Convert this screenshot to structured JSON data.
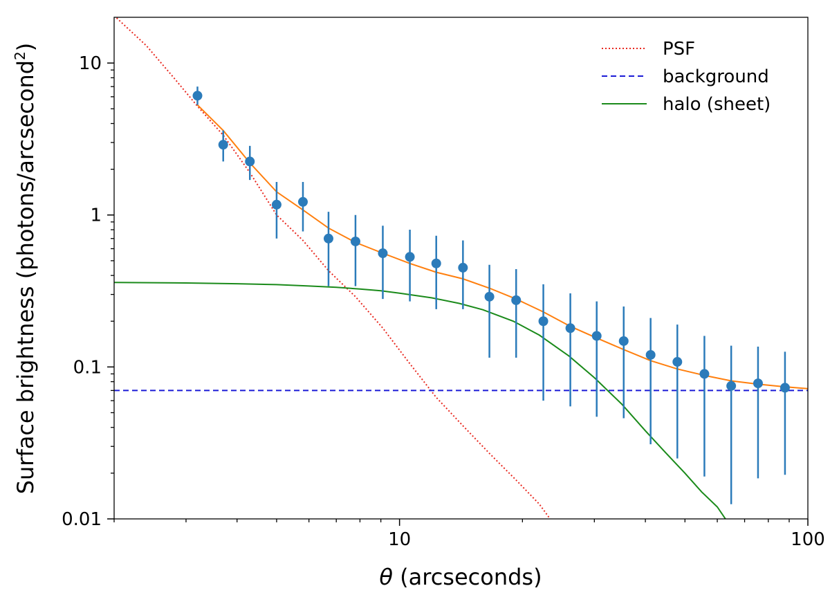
{
  "chart_data": {
    "type": "scatter",
    "xlabel_symbol": "θ",
    "xlabel_text": " (arcseconds)",
    "ylabel_text": "Surface brightness (photons/arcsecond",
    "ylabel_sup": "2",
    "ylabel_close": ")",
    "xscale": "log",
    "yscale": "log",
    "xlim": [
      2.0,
      100
    ],
    "ylim": [
      0.01,
      20
    ],
    "x_ticks": [
      {
        "value": 10,
        "label": "10"
      },
      {
        "value": 100,
        "label": "100"
      }
    ],
    "x_minor_ticks": [
      2,
      3,
      4,
      5,
      6,
      7,
      8,
      9,
      20,
      30,
      40,
      50,
      60,
      70,
      80,
      90
    ],
    "y_ticks": [
      {
        "value": 10,
        "label": "10"
      },
      {
        "value": 1,
        "label": "1"
      },
      {
        "value": 0.1,
        "label": "0.1"
      },
      {
        "value": 0.01,
        "label": "0.01"
      }
    ],
    "y_minor_ticks": [
      0.02,
      0.03,
      0.04,
      0.05,
      0.06,
      0.07,
      0.08,
      0.09,
      0.2,
      0.3,
      0.4,
      0.5,
      0.6,
      0.7,
      0.8,
      0.9,
      2,
      3,
      4,
      5,
      6,
      7,
      8,
      9
    ],
    "grid": false,
    "legend_position": "top-right",
    "legend": [
      {
        "label": "PSF",
        "color": "#e8281f",
        "style": "dotted"
      },
      {
        "label": "background",
        "color": "#1a1ad6",
        "style": "dashed"
      },
      {
        "label": "halo (sheet)",
        "color": "#1a8a1a",
        "style": "solid"
      }
    ],
    "data_points": {
      "color": "#2b7bba",
      "points": [
        {
          "x": 3.2,
          "y": 6.1,
          "ylo": 5.3,
          "yhi": 7.0
        },
        {
          "x": 3.7,
          "y": 2.9,
          "ylo": 2.25,
          "yhi": 3.6
        },
        {
          "x": 4.3,
          "y": 2.25,
          "ylo": 1.7,
          "yhi": 2.85
        },
        {
          "x": 5.0,
          "y": 1.17,
          "ylo": 0.7,
          "yhi": 1.65
        },
        {
          "x": 5.8,
          "y": 1.22,
          "ylo": 0.78,
          "yhi": 1.65
        },
        {
          "x": 6.7,
          "y": 0.7,
          "ylo": 0.34,
          "yhi": 1.05
        },
        {
          "x": 7.8,
          "y": 0.67,
          "ylo": 0.34,
          "yhi": 1.0
        },
        {
          "x": 9.1,
          "y": 0.56,
          "ylo": 0.28,
          "yhi": 0.85
        },
        {
          "x": 10.6,
          "y": 0.53,
          "ylo": 0.27,
          "yhi": 0.8
        },
        {
          "x": 12.3,
          "y": 0.48,
          "ylo": 0.24,
          "yhi": 0.73
        },
        {
          "x": 14.3,
          "y": 0.45,
          "ylo": 0.24,
          "yhi": 0.68
        },
        {
          "x": 16.6,
          "y": 0.29,
          "ylo": 0.115,
          "yhi": 0.47
        },
        {
          "x": 19.3,
          "y": 0.275,
          "ylo": 0.115,
          "yhi": 0.44
        },
        {
          "x": 22.5,
          "y": 0.2,
          "ylo": 0.06,
          "yhi": 0.35
        },
        {
          "x": 26.2,
          "y": 0.18,
          "ylo": 0.055,
          "yhi": 0.305
        },
        {
          "x": 30.4,
          "y": 0.16,
          "ylo": 0.047,
          "yhi": 0.27
        },
        {
          "x": 35.4,
          "y": 0.148,
          "ylo": 0.046,
          "yhi": 0.25
        },
        {
          "x": 41.2,
          "y": 0.12,
          "ylo": 0.031,
          "yhi": 0.21
        },
        {
          "x": 47.9,
          "y": 0.108,
          "ylo": 0.025,
          "yhi": 0.19
        },
        {
          "x": 55.8,
          "y": 0.09,
          "ylo": 0.019,
          "yhi": 0.16
        },
        {
          "x": 64.9,
          "y": 0.075,
          "ylo": 0.0125,
          "yhi": 0.138
        },
        {
          "x": 75.5,
          "y": 0.078,
          "ylo": 0.0185,
          "yhi": 0.136
        },
        {
          "x": 87.9,
          "y": 0.073,
          "ylo": 0.0195,
          "yhi": 0.126
        }
      ]
    },
    "series": [
      {
        "name": "PSF",
        "color": "#e8281f",
        "style": "dotted",
        "x": [
          2.0,
          2.4,
          2.8,
          3.2,
          3.7,
          4.3,
          5.0,
          5.8,
          6.7,
          7.8,
          9.1,
          10.6,
          12.3,
          14.3,
          16.6,
          19.3,
          22.0,
          23.5
        ],
        "y": [
          20.5,
          13.0,
          8.0,
          5.2,
          3.35,
          1.9,
          1.0,
          0.68,
          0.43,
          0.29,
          0.18,
          0.105,
          0.063,
          0.041,
          0.027,
          0.018,
          0.0125,
          0.0098
        ]
      },
      {
        "name": "background",
        "color": "#1a1ad6",
        "style": "dashed",
        "x": [
          2.0,
          100
        ],
        "y": [
          0.07,
          0.07
        ]
      },
      {
        "name": "halo (sheet)",
        "color": "#1a8a1a",
        "style": "solid",
        "x": [
          2.0,
          3.0,
          4.0,
          5.0,
          6.0,
          7.0,
          8.0,
          9.0,
          10.0,
          12.0,
          14.0,
          16.0,
          19.0,
          22.0,
          26.0,
          30.0,
          35.0,
          40.0,
          45.0,
          50.0,
          55.0,
          60.0,
          63.0
        ],
        "y": [
          0.36,
          0.357,
          0.353,
          0.348,
          0.341,
          0.334,
          0.326,
          0.317,
          0.306,
          0.285,
          0.262,
          0.238,
          0.2,
          0.162,
          0.118,
          0.085,
          0.057,
          0.038,
          0.027,
          0.02,
          0.015,
          0.012,
          0.0099
        ]
      },
      {
        "name": "",
        "color": "#ff7f0e",
        "style": "solid",
        "x": [
          3.2,
          3.7,
          4.3,
          5.0,
          5.8,
          6.7,
          7.8,
          9.1,
          10.6,
          12.3,
          14.3,
          16.6,
          19.3,
          22.5,
          26.2,
          30.4,
          35.4,
          41.2,
          47.9,
          55.8,
          64.9,
          75.5,
          87.9,
          100
        ],
        "y": [
          5.3,
          3.6,
          2.2,
          1.42,
          1.08,
          0.82,
          0.66,
          0.56,
          0.48,
          0.42,
          0.38,
          0.33,
          0.28,
          0.23,
          0.185,
          0.155,
          0.13,
          0.11,
          0.097,
          0.088,
          0.081,
          0.077,
          0.074,
          0.072
        ]
      }
    ]
  }
}
